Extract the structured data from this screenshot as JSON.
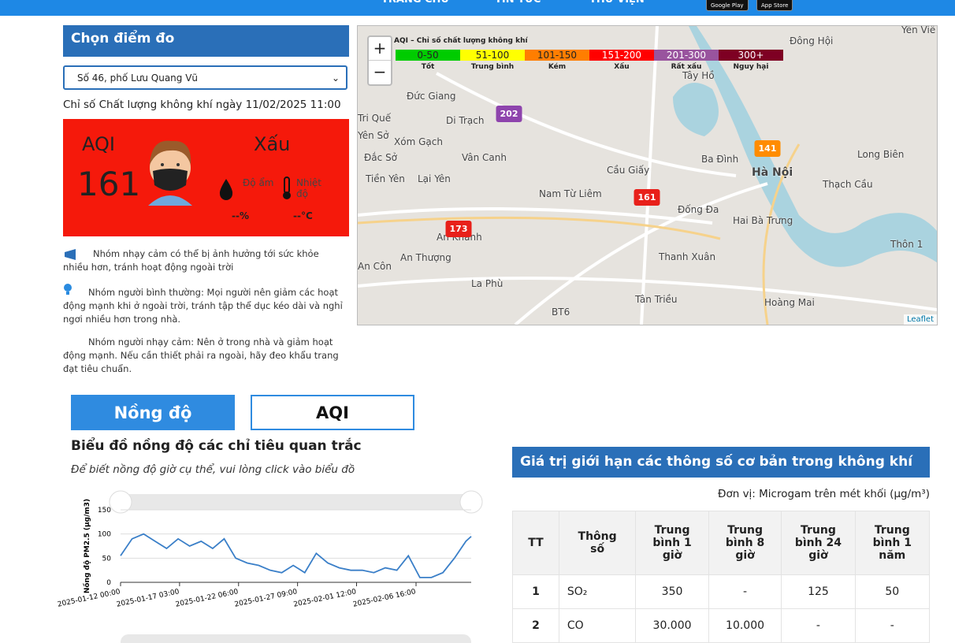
{
  "nav": {
    "items": [
      "TRANG CHỦ",
      "TIN TỨC",
      "THƯ VIỆN"
    ],
    "badges": [
      "Google Play",
      "App Store"
    ]
  },
  "station": {
    "title": "Chọn điểm đo",
    "selected": "Số 46, phố Lưu Quang Vũ",
    "caption": "Chỉ số Chất lượng không khí ngày 11/02/2025 11:00",
    "aqi_label": "AQI",
    "aqi_value": 161,
    "status": "Xấu",
    "humidity_label": "Độ ẩm",
    "humidity_value": "--%",
    "temp_label": "Nhiệt độ",
    "temp_value": "--°C"
  },
  "advice": [
    "Nhóm nhạy cảm có thể bị ảnh hưởng tới sức khỏe nhiều hơn, tránh hoạt động ngoài trời",
    "Nhóm người bình thường: Mọi người nên giảm các hoạt động mạnh khi ở ngoài trời, tránh tập thể dục kéo dài và nghỉ ngơi nhiều hơn trong nhà.",
    "Nhóm người nhạy cảm: Nên ở trong nhà và giảm hoạt động mạnh. Nếu cần thiết phải ra ngoài, hãy đeo khẩu trang đạt tiêu chuẩn."
  ],
  "map": {
    "legend_title": "AQI – Chỉ số chất lượng không khí",
    "legend": [
      {
        "range": "0-50",
        "label": "Tốt",
        "color": "#00cc00"
      },
      {
        "range": "51-100",
        "label": "Trung bình",
        "color": "#ffff00"
      },
      {
        "range": "101-150",
        "label": "Kém",
        "color": "#ff7e00"
      },
      {
        "range": "151-200",
        "label": "Xấu",
        "color": "#ff0000"
      },
      {
        "range": "201-300",
        "label": "Rất xấu",
        "color": "#99549e"
      },
      {
        "range": "300+",
        "label": "Nguy hại",
        "color": "#7e0023"
      }
    ],
    "places": [
      "Đông Hội",
      "Yên Viê",
      "Tây Hồ",
      "Tri Quế",
      "Đức Giang",
      "Di Trạch",
      "Yên Sở",
      "Xóm Gạch",
      "Đắc Sở",
      "Vân Canh",
      "Tiền Yên",
      "Lại Yên",
      "Cầu Giấy",
      "Ba Đình",
      "Hà Nội",
      "Long Biên",
      "Thạch Cầu",
      "Nam Từ Liêm",
      "Đống Đa",
      "Hai Bà Trưng",
      "An Khánh",
      "An Thượng",
      "An Côn",
      "Thanh Xuân",
      "Thôn 1",
      "La Phù",
      "Tân Triều",
      "Hoàng Mai",
      "BT6"
    ],
    "markers": [
      {
        "value": 202,
        "color": "#8e44ad"
      },
      {
        "value": 141,
        "color": "#ff8c00"
      },
      {
        "value": 161,
        "color": "#e8201a"
      },
      {
        "value": 173,
        "color": "#e8201a"
      }
    ],
    "zoom_in": "+",
    "zoom_out": "−",
    "attribution": "Leaflet"
  },
  "tabs": [
    "Nồng độ",
    "AQI"
  ],
  "chart_data": {
    "type": "line",
    "title": "Biểu đồ nồng độ các chỉ tiêu quan trắc",
    "subtitle": "Để biết nồng độ giờ cụ thể, vui lòng click vào biểu đồ",
    "y_label": "Nồng độ PM2.5 (μg/m3)",
    "x": [
      "2025-01-12 00:00",
      "2025-01-13 00:00",
      "2025-01-14 00:00",
      "2025-01-15 00:00",
      "2025-01-16 00:00",
      "2025-01-17 00:00",
      "2025-01-18 00:00",
      "2025-01-19 00:00",
      "2025-01-20 00:00",
      "2025-01-21 00:00",
      "2025-01-22 00:00",
      "2025-01-23 00:00",
      "2025-01-24 00:00",
      "2025-01-25 00:00",
      "2025-01-26 00:00",
      "2025-01-27 00:00",
      "2025-01-28 00:00",
      "2025-01-29 00:00",
      "2025-01-30 00:00",
      "2025-01-31 00:00",
      "2025-02-01 00:00",
      "2025-02-02 00:00",
      "2025-02-03 00:00",
      "2025-02-04 00:00",
      "2025-02-05 00:00",
      "2025-02-06 00:00",
      "2025-02-07 00:00",
      "2025-02-08 00:00",
      "2025-02-09 00:00",
      "2025-02-10 00:00",
      "2025-02-11 00:00",
      "2025-02-11 11:00"
    ],
    "series": [
      {
        "name": "PM2.5",
        "color": "#3a7fc8",
        "values": [
          55,
          90,
          100,
          85,
          70,
          90,
          75,
          85,
          70,
          90,
          50,
          40,
          35,
          25,
          20,
          35,
          20,
          60,
          40,
          30,
          25,
          25,
          20,
          30,
          25,
          55,
          10,
          10,
          20,
          50,
          85,
          95
        ]
      }
    ],
    "xlim": [
      "2025-01-12 00:00",
      "2025-02-11 11:00"
    ],
    "xticks": [
      "2025-01-12 00:00",
      "2025-01-17 03:00",
      "2025-01-22 06:00",
      "2025-01-27 09:00",
      "2025-02-01 12:00",
      "2025-02-06 16:00"
    ],
    "ylim": [
      0,
      150
    ],
    "yticks": [
      0,
      50,
      100,
      150
    ],
    "grid": true
  },
  "limits_table": {
    "title": "Giá trị giới hạn các thông số cơ bản trong không khí",
    "unit": "Đơn vị: Microgam trên mét khối (µg/m³)",
    "headers": [
      "TT",
      "Thông số",
      "Trung bình 1 giờ",
      "Trung bình 8 giờ",
      "Trung bình 24 giờ",
      "Trung bình 1 năm"
    ],
    "rows": [
      [
        "1",
        "SO₂",
        "350",
        "-",
        "125",
        "50"
      ],
      [
        "2",
        "CO",
        "30.000",
        "10.000",
        "-",
        "-"
      ]
    ]
  }
}
